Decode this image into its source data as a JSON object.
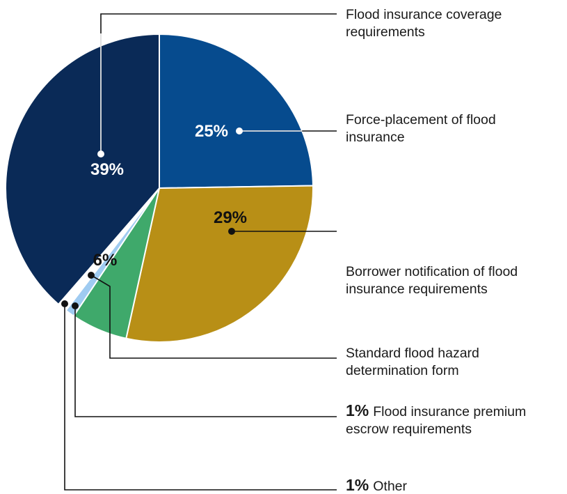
{
  "chart_data": {
    "type": "pie",
    "slices": [
      {
        "label": "Flood insurance coverage requirements",
        "label_lines": [
          "Flood insurance coverage",
          "requirements"
        ],
        "value": 39,
        "value_label": "39%",
        "color": "#0a2a57",
        "label_color": "#ffffff"
      },
      {
        "label": "Force-placement of flood insurance",
        "label_lines": [
          "Force-placement of flood",
          "insurance"
        ],
        "value": 25,
        "value_label": "25%",
        "color": "#064b8e",
        "label_color": "#ffffff"
      },
      {
        "label": "Borrower notification of flood insurance requirements",
        "label_lines": [
          "Borrower notification of flood",
          "insurance requirements"
        ],
        "value": 29,
        "value_label": "29%",
        "color": "#b88f16",
        "label_color": "#111111"
      },
      {
        "label": "Standard flood hazard determination form",
        "label_lines": [
          "Standard flood hazard",
          "determination form"
        ],
        "value": 6,
        "value_label": "6%",
        "color": "#3fa96b",
        "label_color": "#111111"
      },
      {
        "label": "Flood insurance premium escrow requirements",
        "label_lines": [
          "Flood insurance premium",
          "escrow requirements"
        ],
        "value": 1,
        "value_label": "1%",
        "color": "#9fcbf1",
        "label_color": "#111111"
      },
      {
        "label": "Other",
        "label_lines": [
          "Other"
        ],
        "value": 1,
        "value_label": "1%",
        "color": "#ffffff",
        "label_color": "#111111"
      }
    ]
  }
}
